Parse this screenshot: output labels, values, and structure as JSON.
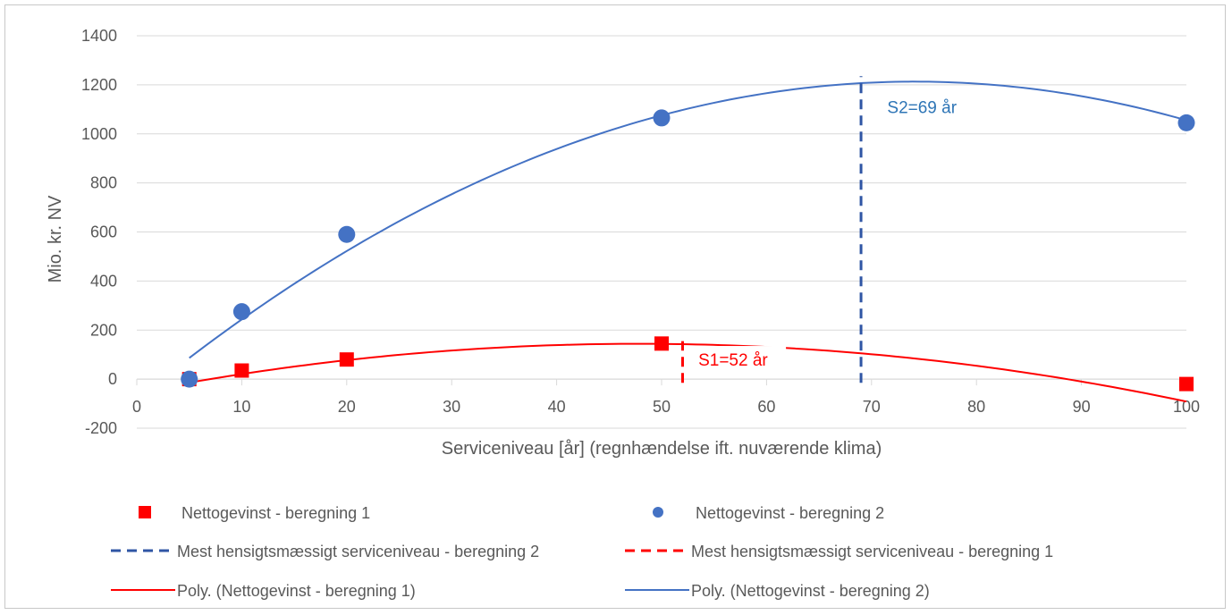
{
  "chart_data": {
    "type": "scatter",
    "title": "",
    "xlabel": "Serviceniveau [år] (regnhændelse ift. nuværende klima)",
    "ylabel": "Mio. kr. NV",
    "xlim": [
      0,
      100
    ],
    "ylim": [
      -200,
      1400
    ],
    "x_ticks": [
      0,
      10,
      20,
      30,
      40,
      50,
      60,
      70,
      80,
      90,
      100
    ],
    "y_ticks": [
      -200,
      0,
      200,
      400,
      600,
      800,
      1000,
      1200,
      1400
    ],
    "grid": true,
    "legend_position": "bottom",
    "series": [
      {
        "name": "Nettogevinst - beregning 1",
        "kind": "scatter",
        "marker": "square",
        "color": "#ff0000",
        "x": [
          5,
          10,
          20,
          50,
          100
        ],
        "y": [
          0,
          35,
          80,
          145,
          -20
        ]
      },
      {
        "name": "Nettogevinst - beregning 2",
        "kind": "scatter",
        "marker": "circle",
        "color": "#4472c4",
        "x": [
          5,
          10,
          20,
          50,
          100
        ],
        "y": [
          0,
          275,
          590,
          1065,
          1045
        ]
      },
      {
        "name": "Mest hensigtsmæssigt serviceniveau - beregning 2",
        "kind": "vline",
        "style": "dashed",
        "color": "#2f55a4",
        "x": 69,
        "y_range": [
          -15,
          1235
        ]
      },
      {
        "name": "Mest hensigtsmæssigt serviceniveau - beregning 1",
        "kind": "vline",
        "style": "dashed",
        "color": "#ff0000",
        "x": 52,
        "y_range": [
          -15,
          155
        ]
      },
      {
        "name": "Poly. (Nettogevinst - beregning 1)",
        "kind": "trend",
        "color": "#ff0000",
        "poly_coeffs": [
          -53.4,
          8.26,
          -0.0864
        ],
        "x_range": [
          5,
          100
        ]
      },
      {
        "name": "Poly. (Nettogevinst - beregning 2)",
        "kind": "trend",
        "color": "#4472c4",
        "poly_coeffs": [
          -82.6,
          34.95,
          -0.2357
        ],
        "x_range": [
          5,
          100
        ]
      }
    ],
    "annotations": [
      {
        "text": "S2=69 år",
        "x": 71.5,
        "y": 1085,
        "color": "#2e75b6"
      },
      {
        "text": "S1=52 år",
        "x": 53.5,
        "y": 55,
        "color": "#ff0000"
      }
    ],
    "legend_order": [
      0,
      1,
      2,
      3,
      4,
      5
    ]
  }
}
